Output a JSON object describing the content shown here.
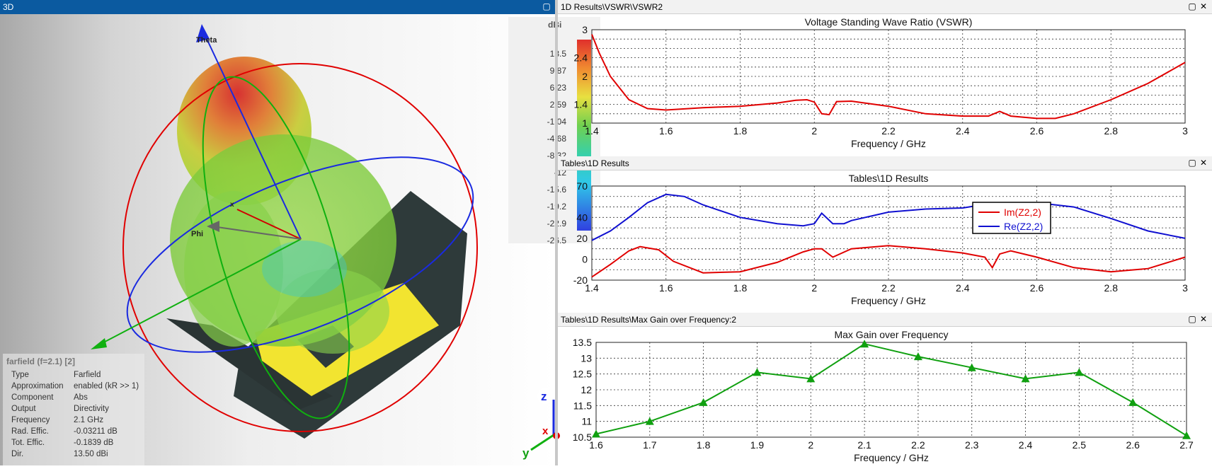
{
  "left_panel": {
    "title": "3D",
    "colorbar": {
      "unit": "dBi",
      "labels": [
        "13.5",
        "9.87",
        "6.23",
        "2.59",
        "-1.04",
        "-4.68",
        "-8.32",
        "-12",
        "-15.6",
        "-19.2",
        "-22.9",
        "-26.5"
      ]
    },
    "axes_labels": {
      "theta": "Theta",
      "phi": "Phi",
      "x": "x"
    },
    "triad": {
      "z": "z",
      "y": "y",
      "x": "x"
    },
    "info": {
      "title": "farfield (f=2.1) [2]",
      "rows": [
        {
          "k": "Type",
          "v": "Farfield"
        },
        {
          "k": "Approximation",
          "v": "enabled (kR >> 1)"
        },
        {
          "k": "Component",
          "v": "Abs"
        },
        {
          "k": "Output",
          "v": "Directivity"
        },
        {
          "k": "Frequency",
          "v": "2.1 GHz"
        },
        {
          "k": "Rad. Effic.",
          "v": "-0.03211 dB"
        },
        {
          "k": "Tot. Effic.",
          "v": "-0.1839 dB"
        },
        {
          "k": "Dir.",
          "v": "13.50 dBi"
        }
      ]
    }
  },
  "panels": [
    {
      "window_title": "1D Results\\VSWR\\VSWR2"
    },
    {
      "window_title": "Tables\\1D Results"
    },
    {
      "window_title": "Tables\\1D Results\\Max Gain over Frequency:2"
    }
  ],
  "colors": {
    "red": "#e00000",
    "blue": "#1010d0",
    "green": "#10a010",
    "titlebar": "#0b5aa0"
  },
  "chart_data": [
    {
      "type": "line",
      "title": "Voltage Standing Wave Ratio (VSWR)",
      "xlabel": "Frequency / GHz",
      "ylabel": "",
      "xlim": [
        1.4,
        3.0
      ],
      "ylim": [
        1,
        3
      ],
      "xticks": [
        "1.4",
        "1.6",
        "1.8",
        "2",
        "2.2",
        "2.4",
        "2.6",
        "2.8",
        "3"
      ],
      "yticks": [
        "1",
        "1.4",
        "2",
        "2.4",
        "3"
      ],
      "series": [
        {
          "color": "#e00000",
          "x": [
            1.4,
            1.42,
            1.45,
            1.5,
            1.55,
            1.6,
            1.7,
            1.8,
            1.9,
            1.95,
            1.98,
            2.0,
            2.02,
            2.04,
            2.06,
            2.1,
            2.2,
            2.3,
            2.4,
            2.47,
            2.5,
            2.53,
            2.6,
            2.65,
            2.7,
            2.8,
            2.9,
            3.0
          ],
          "y": [
            2.9,
            2.5,
            2.0,
            1.5,
            1.31,
            1.28,
            1.33,
            1.36,
            1.43,
            1.49,
            1.5,
            1.45,
            1.2,
            1.18,
            1.46,
            1.47,
            1.36,
            1.2,
            1.15,
            1.15,
            1.25,
            1.15,
            1.1,
            1.1,
            1.2,
            1.5,
            1.85,
            2.3
          ]
        }
      ]
    },
    {
      "type": "line",
      "title": "Tables\\1D Results",
      "xlabel": "Frequency / GHz",
      "ylabel": "",
      "xlim": [
        1.4,
        3.0
      ],
      "ylim": [
        -20,
        70
      ],
      "xticks": [
        "1.4",
        "1.6",
        "1.8",
        "2",
        "2.2",
        "2.4",
        "2.6",
        "2.8",
        "3"
      ],
      "yticks": [
        "-20",
        "0",
        "20",
        "40",
        "70"
      ],
      "legend": {
        "placement": "right",
        "entries": [
          "Im(Z2,2)",
          "Re(Z2,2)"
        ]
      },
      "series": [
        {
          "name": "Im(Z2,2)",
          "color": "#e00000",
          "x": [
            1.4,
            1.45,
            1.5,
            1.53,
            1.58,
            1.62,
            1.7,
            1.8,
            1.9,
            1.97,
            2.0,
            2.02,
            2.05,
            2.1,
            2.2,
            2.3,
            2.4,
            2.46,
            2.48,
            2.5,
            2.53,
            2.6,
            2.7,
            2.8,
            2.9,
            3.0
          ],
          "y": [
            -17,
            -5,
            8,
            12,
            9,
            -2,
            -13,
            -12,
            -3,
            7,
            10,
            10,
            2,
            10,
            13,
            10,
            6,
            2,
            -8,
            5,
            8,
            2,
            -8,
            -12,
            -9,
            2
          ]
        },
        {
          "name": "Re(Z2,2)",
          "color": "#1010d0",
          "x": [
            1.4,
            1.45,
            1.5,
            1.55,
            1.6,
            1.65,
            1.7,
            1.8,
            1.9,
            1.97,
            2.0,
            2.02,
            2.05,
            2.08,
            2.1,
            2.2,
            2.3,
            2.4,
            2.47,
            2.5,
            2.53,
            2.6,
            2.7,
            2.8,
            2.9,
            3.0
          ],
          "y": [
            18,
            27,
            40,
            54,
            62,
            60,
            52,
            40,
            34,
            32,
            34,
            44,
            34,
            34,
            37,
            45,
            48,
            49,
            53,
            39,
            51,
            54,
            50,
            39,
            27,
            20
          ]
        }
      ]
    },
    {
      "type": "line",
      "title": "Max Gain over Frequency",
      "xlabel": "Frequency / GHz",
      "ylabel": "",
      "xlim": [
        1.6,
        2.7
      ],
      "ylim": [
        10.5,
        13.5
      ],
      "xticks": [
        "1.6",
        "1.7",
        "1.8",
        "1.9",
        "2",
        "2.1",
        "2.2",
        "2.3",
        "2.4",
        "2.5",
        "2.6",
        "2.7"
      ],
      "yticks": [
        "10.5",
        "11",
        "11.5",
        "12",
        "12.5",
        "13",
        "13.5"
      ],
      "series": [
        {
          "color": "#10a010",
          "markers": "triangle",
          "x": [
            1.6,
            1.7,
            1.8,
            1.9,
            2.0,
            2.1,
            2.2,
            2.3,
            2.4,
            2.5,
            2.6,
            2.7
          ],
          "y": [
            10.6,
            11.0,
            11.6,
            12.55,
            12.35,
            13.45,
            13.05,
            12.7,
            12.35,
            12.55,
            11.6,
            10.55
          ]
        }
      ]
    }
  ]
}
